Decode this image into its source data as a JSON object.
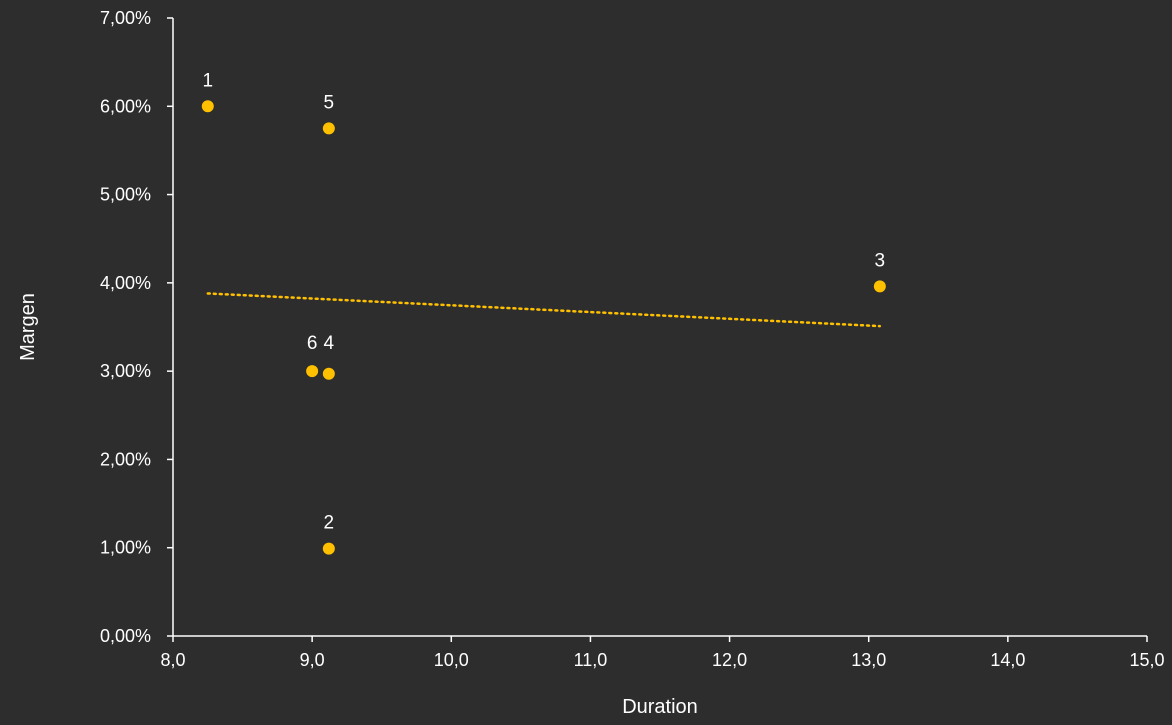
{
  "chart_data": {
    "type": "scatter",
    "title": "",
    "xlabel": "Duration",
    "ylabel": "Margen",
    "xlim": [
      8.0,
      15.0
    ],
    "ylim": [
      0.0,
      0.07
    ],
    "x_ticks": [
      8.0,
      9.0,
      10.0,
      11.0,
      12.0,
      13.0,
      14.0,
      15.0
    ],
    "x_tick_labels": [
      "8,0",
      "9,0",
      "10,0",
      "11,0",
      "12,0",
      "13,0",
      "14,0",
      "15,0"
    ],
    "y_ticks": [
      0.0,
      0.01,
      0.02,
      0.03,
      0.04,
      0.05,
      0.06,
      0.07
    ],
    "y_tick_labels": [
      "0,00%",
      "1,00%",
      "2,00%",
      "3,00%",
      "4,00%",
      "5,00%",
      "6,00%",
      "7,00%"
    ],
    "grid": false,
    "legend": "none",
    "point_color": "#ffc000",
    "background": "#2d2d2d",
    "axis_color": "#ffffff",
    "points": [
      {
        "label": "1",
        "x": 8.25,
        "y": 0.06
      },
      {
        "label": "2",
        "x": 9.12,
        "y": 0.0099
      },
      {
        "label": "3",
        "x": 13.08,
        "y": 0.0396
      },
      {
        "label": "4",
        "x": 9.12,
        "y": 0.0297
      },
      {
        "label": "5",
        "x": 9.12,
        "y": 0.0575
      },
      {
        "label": "6",
        "x": 9.0,
        "y": 0.03
      }
    ],
    "trendline": {
      "style": "dotted",
      "color": "#ffc000",
      "x_start": 8.25,
      "y_start": 0.0388,
      "x_end": 13.08,
      "y_end": 0.0351
    }
  }
}
